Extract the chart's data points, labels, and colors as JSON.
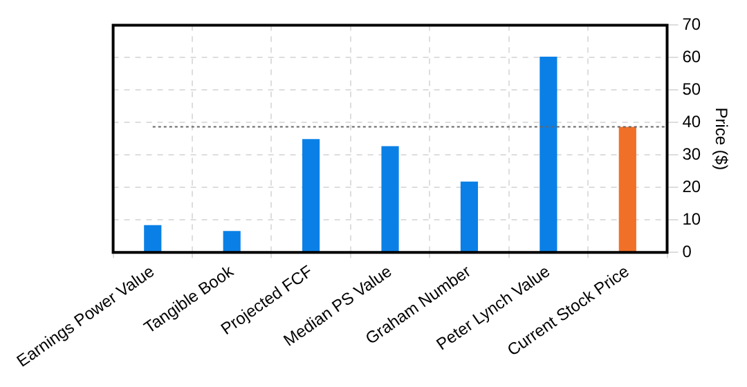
{
  "chart_data": {
    "type": "bar",
    "ylabel": "Price ($)",
    "categories": [
      "Earnings Power Value",
      "Tangible Book",
      "Projected FCF",
      "Median PS Value",
      "Graham Number",
      "Peter Lynch Value",
      "Current Stock Price"
    ],
    "values": [
      8.4,
      6.6,
      34.9,
      32.7,
      21.8,
      60.3,
      38.7
    ],
    "colors": [
      "#0a80e6",
      "#0a80e6",
      "#0a80e6",
      "#0a80e6",
      "#0a80e6",
      "#0a80e6",
      "#f07028"
    ],
    "ylim": [
      0,
      70
    ],
    "yticks": [
      0,
      10,
      20,
      30,
      40,
      50,
      60,
      70
    ],
    "grid": true,
    "ref_lines": [
      {
        "axis": "y",
        "value": 38.7,
        "color": "#666666",
        "line_style": "dotted"
      }
    ]
  }
}
